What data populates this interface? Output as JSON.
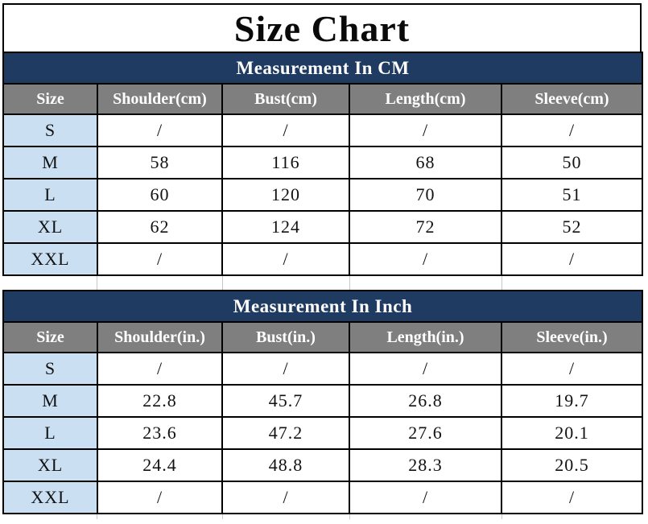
{
  "title": "Size Chart",
  "colors": {
    "banner_navy": "#1f3b61",
    "header_gray": "#7f7f7f",
    "size_column_blue": "#cbdff2",
    "border_black": "#000000",
    "banner_text": "#ffffff",
    "body_text": "#111111"
  },
  "chart_data": [
    {
      "type": "table",
      "title": "Measurement In CM",
      "columns": [
        "Size",
        "Shoulder(cm)",
        "Bust(cm)",
        "Length(cm)",
        "Sleeve(cm)"
      ],
      "rows": [
        [
          "S",
          "/",
          "/",
          "/",
          "/"
        ],
        [
          "M",
          "58",
          "116",
          "68",
          "50"
        ],
        [
          "L",
          "60",
          "120",
          "70",
          "51"
        ],
        [
          "XL",
          "62",
          "124",
          "72",
          "52"
        ],
        [
          "XXL",
          "/",
          "/",
          "/",
          "/"
        ]
      ]
    },
    {
      "type": "table",
      "title": "Measurement In Inch",
      "columns": [
        "Size",
        "Shoulder(in.)",
        "Bust(in.)",
        "Length(in.)",
        "Sleeve(in.)"
      ],
      "rows": [
        [
          "S",
          "/",
          "/",
          "/",
          "/"
        ],
        [
          "M",
          "22.8",
          "45.7",
          "26.8",
          "19.7"
        ],
        [
          "L",
          "23.6",
          "47.2",
          "27.6",
          "20.1"
        ],
        [
          "XL",
          "24.4",
          "48.8",
          "28.3",
          "20.5"
        ],
        [
          "XXL",
          "/",
          "/",
          "/",
          "/"
        ]
      ]
    }
  ]
}
